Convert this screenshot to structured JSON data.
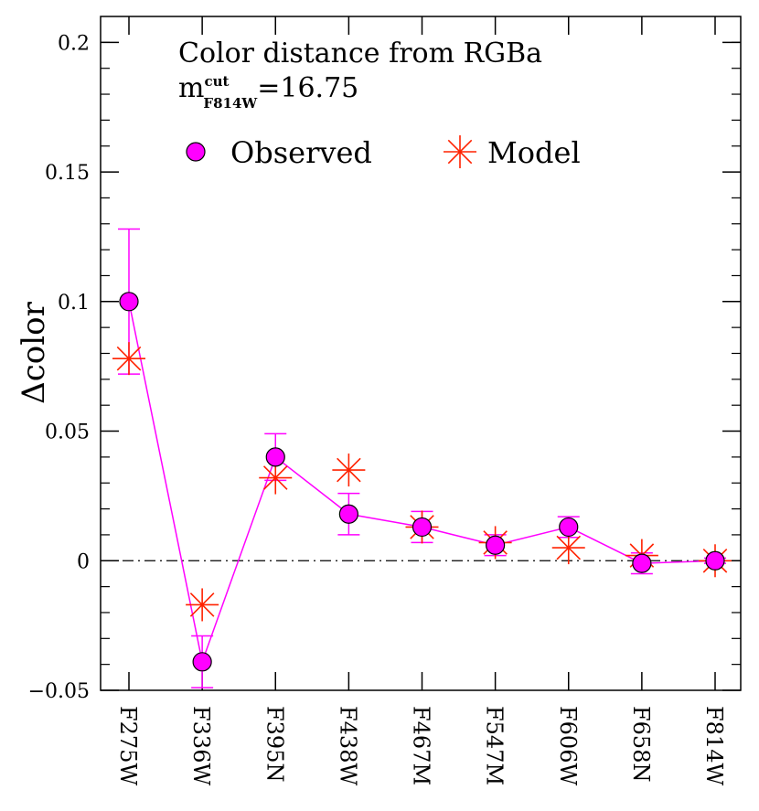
{
  "chart_data": {
    "type": "errorbar",
    "title": "Color distance from RGBa",
    "subtitle_parts": {
      "base": "m",
      "sup": "cut",
      "sub": "F814W",
      "rest": "=16.75"
    },
    "ylabel": "Δcolor",
    "categories": [
      "F275W",
      "F336W",
      "F395N",
      "F438W",
      "F467M",
      "F547M",
      "F606W",
      "F658N",
      "F814W"
    ],
    "series": [
      {
        "name": "Observed",
        "color": "#ff00ff",
        "marker": "circle",
        "values": [
          0.1,
          -0.039,
          0.04,
          0.018,
          0.013,
          0.006,
          0.013,
          -0.001,
          0.0
        ],
        "errors": [
          0.028,
          0.01,
          0.009,
          0.008,
          0.006,
          0.004,
          0.004,
          0.004,
          0.001
        ]
      },
      {
        "name": "Model",
        "color": "#ff2200",
        "marker": "asterisk",
        "values": [
          0.078,
          -0.017,
          0.032,
          0.035,
          0.013,
          0.007,
          0.005,
          0.002,
          0.0
        ]
      }
    ],
    "ylim": [
      -0.05,
      0.21
    ],
    "yticks": [
      {
        "value": -0.05,
        "label": "−0.05"
      },
      0,
      0.05,
      0.1,
      0.15,
      0.2
    ],
    "yminorticks": [
      -0.04,
      -0.03,
      -0.02,
      -0.01,
      0.01,
      0.02,
      0.03,
      0.04,
      0.06,
      0.07,
      0.08,
      0.09,
      0.11,
      0.12,
      0.13,
      0.14,
      0.16,
      0.17,
      0.18,
      0.19,
      0.2
    ],
    "hline": 0,
    "legend": "top"
  }
}
